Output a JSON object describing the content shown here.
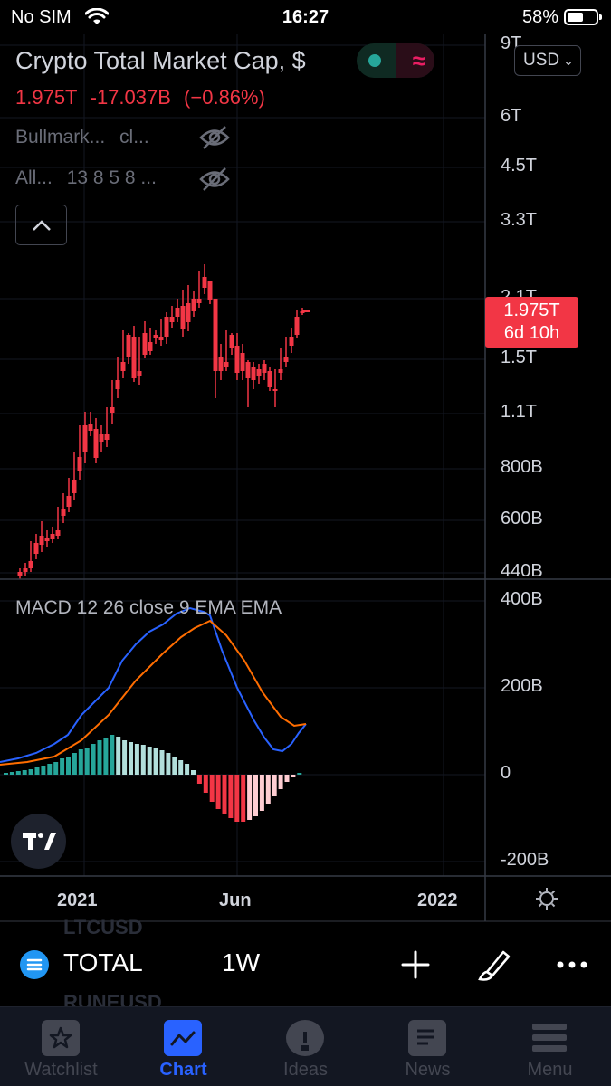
{
  "status_bar": {
    "carrier": "No SIM",
    "time": "16:27",
    "battery": "58%",
    "battery_level": 0.58
  },
  "header": {
    "title": "Crypto Total Market Cap, $",
    "last": "1.975T",
    "change": "-17.037B",
    "change_pct": "(−0.86%)",
    "currency": "USD"
  },
  "indicators": [
    {
      "name": "Bullmark...",
      "params": "cl..."
    },
    {
      "name": "All...",
      "params": "13 8 5 8 ..."
    }
  ],
  "price_badge": {
    "price": "1.975T",
    "countdown": "6d 10h"
  },
  "macd": {
    "label": "MACD 12 26 close 9 EMA EMA"
  },
  "chart_data": {
    "type": "candlestick",
    "price_axis": [
      "9T",
      "6T",
      "4.5T",
      "3.3T",
      "2.1T",
      "1.5T",
      "1.1T",
      "800B",
      "600B",
      "440B"
    ],
    "macd_axis": [
      "400B",
      "200B",
      "0",
      "-200B"
    ],
    "time_axis": [
      "2021",
      "Jun",
      "2022"
    ],
    "accent_colors": {
      "up": "#26a69a",
      "down": "#f23645",
      "macd": "#2962ff",
      "signal": "#ff6d00"
    }
  },
  "symbol_bar": {
    "above": "LTCUSD",
    "symbol": "TOTAL",
    "interval": "1W",
    "below": "RUNEUSD",
    "icons": [
      "plus-icon",
      "brush-icon",
      "more-icon"
    ]
  },
  "tabs": [
    {
      "label": "Watchlist",
      "icon": "star-icon",
      "active": false
    },
    {
      "label": "Chart",
      "icon": "chart-icon",
      "active": true
    },
    {
      "label": "Ideas",
      "icon": "bulb-icon",
      "active": false
    },
    {
      "label": "News",
      "icon": "news-icon",
      "active": false
    },
    {
      "label": "Menu",
      "icon": "menu-icon",
      "active": false
    }
  ]
}
